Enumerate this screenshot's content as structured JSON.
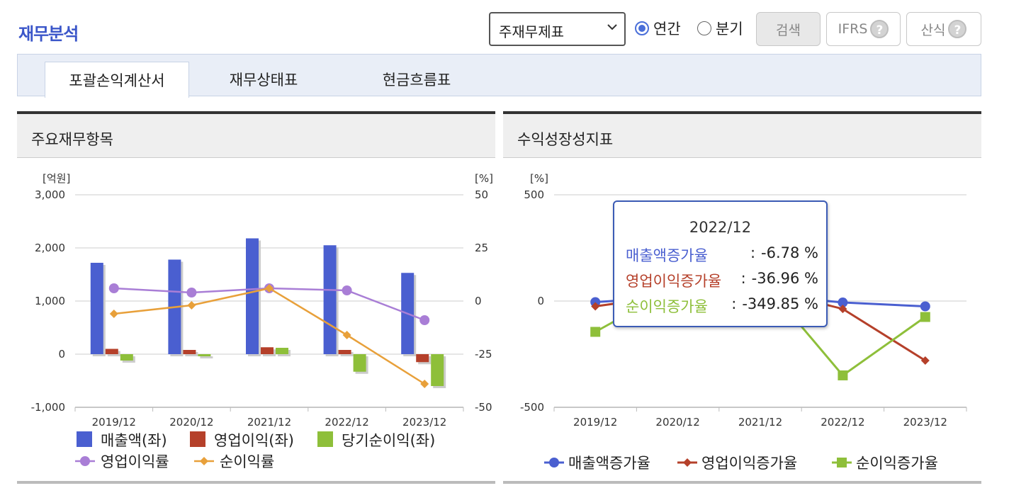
{
  "page": {
    "title": "재무분석"
  },
  "toolbar": {
    "select_value": "주재무제표",
    "radio_annual": "연간",
    "radio_quarter": "분기",
    "search_label": "검색",
    "ifrs_label": "IFRS",
    "formula_label": "산식",
    "help_glyph": "?"
  },
  "tabs": [
    {
      "label": "포괄손익계산서",
      "active": true
    },
    {
      "label": "재무상태표",
      "active": false
    },
    {
      "label": "현금흐름표",
      "active": false
    }
  ],
  "left_panel": {
    "title": "주요재무항목"
  },
  "right_panel": {
    "title": "수익성장성지표"
  },
  "tooltip": {
    "title": "2022/12",
    "rows": [
      {
        "label": "매출액증가율",
        "sep": ":",
        "value": "-6.78 %",
        "color": "#4a5fd0"
      },
      {
        "label": "영업이익증가율",
        "sep": ":",
        "value": "-36.96 %",
        "color": "#b5402a"
      },
      {
        "label": "순이익증가율",
        "sep": ":",
        "value": "-349.85 %",
        "color": "#8ebf3a"
      }
    ]
  },
  "chart_data": [
    {
      "type": "bar",
      "categories": [
        "2019/12",
        "2020/12",
        "2021/12",
        "2022/12",
        "2023/12"
      ],
      "y_left_unit": "[억원]",
      "y_right_unit": "[%]",
      "y_left_ticks": [
        "3,000",
        "2,000",
        "1,000",
        "0",
        "-1,000"
      ],
      "y_right_ticks": [
        "50",
        "25",
        "0",
        "-25",
        "-50"
      ],
      "ylim_left": [
        -1000,
        3000
      ],
      "ylim_right": [
        -50,
        50
      ],
      "grid": true,
      "legend_position": "bottom",
      "series": [
        {
          "name": "매출액(좌)",
          "kind": "bar",
          "axis": "left",
          "color": "#4a5fd0",
          "values": [
            1720,
            1780,
            2180,
            2050,
            1530
          ]
        },
        {
          "name": "영업이익(좌)",
          "kind": "bar",
          "axis": "left",
          "color": "#b5402a",
          "values": [
            100,
            80,
            130,
            80,
            -150
          ]
        },
        {
          "name": "당기순이익(좌)",
          "kind": "bar",
          "axis": "left",
          "color": "#8ebf3a",
          "values": [
            -120,
            -40,
            120,
            -330,
            -600
          ]
        },
        {
          "name": "영업이익률",
          "kind": "line",
          "axis": "right",
          "color": "#a97ed6",
          "marker": "circle",
          "values": [
            6,
            4,
            6,
            5,
            -9
          ]
        },
        {
          "name": "순이익률",
          "kind": "line",
          "axis": "right",
          "color": "#e8a03a",
          "marker": "diamond",
          "values": [
            -6,
            -2,
            6,
            -16,
            -39
          ]
        }
      ]
    },
    {
      "type": "line",
      "categories": [
        "2019/12",
        "2020/12",
        "2021/12",
        "2022/12",
        "2023/12"
      ],
      "y_unit": "[%]",
      "y_ticks": [
        "500",
        "0",
        "-500"
      ],
      "ylim": [
        -500,
        500
      ],
      "grid": true,
      "legend_position": "bottom",
      "series": [
        {
          "name": "매출액증가율",
          "color": "#4a5fd0",
          "marker": "circle",
          "values": [
            -5,
            20,
            30,
            -6.78,
            -25
          ]
        },
        {
          "name": "영업이익증가율",
          "color": "#b5402a",
          "marker": "diamond",
          "values": [
            -25,
            30,
            60,
            -36.96,
            -280
          ]
        },
        {
          "name": "순이익증가율",
          "color": "#8ebf3a",
          "marker": "square",
          "values": [
            -145,
            70,
            110,
            -349.85,
            -75
          ]
        }
      ]
    }
  ]
}
